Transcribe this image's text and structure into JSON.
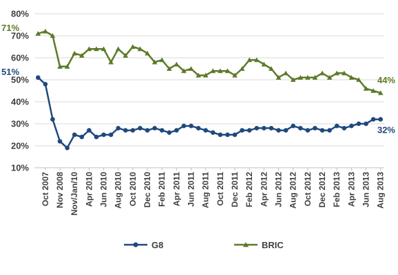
{
  "chart_data": {
    "type": "line",
    "ylim": [
      10,
      80
    ],
    "y_ticks": [
      "10%",
      "20%",
      "30%",
      "40%",
      "50%",
      "60%",
      "70%",
      "80%"
    ],
    "y_tick_values": [
      10,
      20,
      30,
      40,
      50,
      60,
      70,
      80
    ],
    "x_tick_labels": [
      "Oct 2007",
      "Nov 2008",
      "Nov/Jan/10",
      "Apr 2010",
      "Jun 2010",
      "Aug 2010",
      "Oct 2010",
      "Dec 2010",
      "Feb 2011",
      "Apr 2011",
      "Jun 2011",
      "Aug 2011",
      "Oct 2011",
      "Dec 2011",
      "Feb 2012",
      "Apr 2012",
      "Jun 2012",
      "Aug 2012",
      "Oct 2012",
      "Dec 2012",
      "Feb 2013",
      "Apr 2013",
      "Jun 2013",
      "Aug 2013"
    ],
    "grid": "horizontal",
    "legend": "bottom",
    "series": [
      {
        "name": "G8",
        "color": "#1f497d",
        "marker": "circle",
        "values": [
          51,
          48,
          32,
          22,
          19,
          25,
          24,
          27,
          24,
          25,
          25,
          28,
          27,
          27,
          28,
          27,
          28,
          27,
          26,
          27,
          29,
          29,
          28,
          27,
          26,
          25,
          25,
          25,
          27,
          27,
          28,
          28,
          28,
          27,
          27,
          29,
          28,
          27,
          28,
          27,
          27,
          29,
          28,
          29,
          30,
          30,
          32,
          32
        ],
        "end_label": "32%",
        "start_label": "51%"
      },
      {
        "name": "BRIC",
        "color": "#5c7a29",
        "marker": "triangle",
        "values": [
          71,
          72,
          70,
          56,
          56,
          62,
          61,
          64,
          64,
          64,
          58,
          64,
          61,
          65,
          64,
          62,
          58,
          59,
          55,
          57,
          54,
          55,
          52,
          52,
          54,
          54,
          54,
          52,
          55,
          59,
          59,
          57,
          55,
          51,
          53,
          50,
          51,
          51,
          51,
          53,
          51,
          53,
          53,
          51,
          50,
          46,
          45,
          44
        ],
        "end_label": "44%",
        "start_label": "71%"
      }
    ]
  }
}
